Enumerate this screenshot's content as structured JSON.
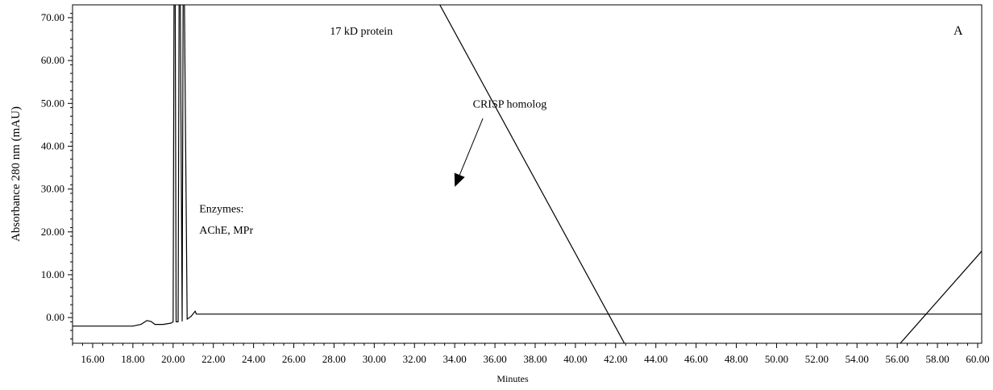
{
  "chart_data": {
    "type": "line",
    "title": "",
    "xlabel": "Minutes",
    "ylabel": "Absorbance 280 nm (mAU)",
    "xlim": [
      15.0,
      60.2
    ],
    "ylim": [
      -6.0,
      73.0
    ],
    "x_ticks": [
      "16.00",
      "18.00",
      "20.00",
      "22.00",
      "24.00",
      "26.00",
      "28.00",
      "30.00",
      "32.00",
      "34.00",
      "36.00",
      "38.00",
      "40.00",
      "42.00",
      "44.00",
      "46.00",
      "48.00",
      "50.00",
      "52.00",
      "54.00",
      "56.00",
      "58.00",
      "60.00"
    ],
    "y_ticks": [
      "0.00",
      "10.00",
      "20.00",
      "30.00",
      "40.00",
      "50.00",
      "60.00",
      "70.00"
    ],
    "grid": false,
    "series": [
      {
        "x": [
          15.0,
          16.0,
          17.0,
          18.0,
          18.4,
          18.7,
          18.9,
          19.1,
          19.5,
          19.9,
          20.0,
          20.05,
          20.1,
          20.15,
          20.25,
          20.3,
          20.35,
          20.45,
          20.5,
          20.55,
          20.7,
          20.9,
          21.1,
          21.15,
          22.0,
          30.0,
          40.0,
          50.0,
          60.2
        ],
        "y": [
          -2.0,
          -2.0,
          -2.0,
          -2.0,
          -1.6,
          -0.7,
          -0.9,
          -1.6,
          -1.6,
          -1.3,
          -1.0,
          80.0,
          80.0,
          -1.0,
          -1.0,
          80.0,
          80.0,
          -0.8,
          80.0,
          80.0,
          -0.4,
          0.3,
          1.5,
          0.8,
          0.8,
          0.8,
          0.8,
          0.8,
          0.8
        ]
      },
      {
        "x": [
          33.2,
          42.9
        ],
        "y": [
          73.5,
          -10.0
        ]
      },
      {
        "x": [
          55.4,
          60.2
        ],
        "y": [
          -10.0,
          15.5
        ]
      }
    ],
    "annotations": [
      {
        "text": "17 kD protein",
        "x": 27.8,
        "y": 66.0
      },
      {
        "text": "CRISP homolog",
        "x": 34.9,
        "y": 49.0
      },
      {
        "text": "Enzymes:",
        "x": 21.3,
        "y": 24.6
      },
      {
        "text": "AChE, MPr",
        "x": 21.3,
        "y": 19.6
      },
      {
        "text": "A",
        "x": 58.8,
        "y": 66.0
      }
    ],
    "arrows": [
      {
        "from_x": 35.4,
        "from_y": 46.5,
        "to_x": 34.0,
        "to_y": 30.5
      }
    ]
  }
}
